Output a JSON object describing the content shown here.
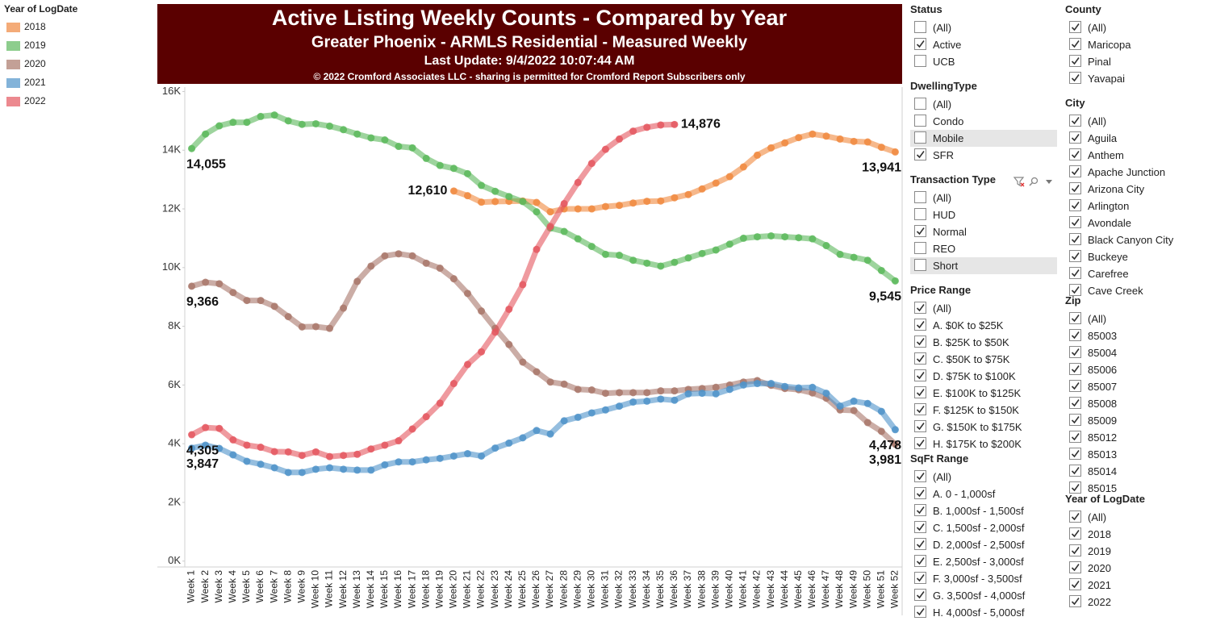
{
  "chart_data": {
    "type": "line",
    "title": "Active Listing Weekly Counts - Compared by Year",
    "subtitle": "Greater Phoenix - ARMLS Residential - Measured Weekly",
    "update": "Last Update: 9/4/2022 10:07:44 AM",
    "copyright": "© 2022 Cromford Associates LLC - sharing is permitted for Cromford Report Subscribers only",
    "legend_title": "Year of LogDate",
    "legend": "left",
    "grid": false,
    "categories": [
      "Week 1",
      "Week 2",
      "Week 3",
      "Week 4",
      "Week 5",
      "Week 6",
      "Week 7",
      "Week 8",
      "Week 9",
      "Week 10",
      "Week 11",
      "Week 12",
      "Week 13",
      "Week 14",
      "Week 15",
      "Week 16",
      "Week 17",
      "Week 18",
      "Week 19",
      "Week 20",
      "Week 21",
      "Week 22",
      "Week 23",
      "Week 24",
      "Week 25",
      "Week 26",
      "Week 27",
      "Week 28",
      "Week 29",
      "Week 30",
      "Week 31",
      "Week 32",
      "Week 33",
      "Week 34",
      "Week 35",
      "Week 36",
      "Week 37",
      "Week 38",
      "Week 39",
      "Week 40",
      "Week 41",
      "Week 42",
      "Week 43",
      "Week 44",
      "Week 45",
      "Week 46",
      "Week 47",
      "Week 48",
      "Week 49",
      "Week 50",
      "Week 51",
      "Week 52"
    ],
    "ylim": [
      -200,
      16150
    ],
    "yticks": [
      {
        "value": 0,
        "label": "0K"
      },
      {
        "value": 2000,
        "label": "2K"
      },
      {
        "value": 4000,
        "label": "4K"
      },
      {
        "value": 6000,
        "label": "6K"
      },
      {
        "value": 8000,
        "label": "8K"
      },
      {
        "value": 10000,
        "label": "10K"
      },
      {
        "value": 12000,
        "label": "12K"
      },
      {
        "value": 14000,
        "label": "14K"
      },
      {
        "value": 16000,
        "label": "16K"
      }
    ],
    "series": [
      {
        "name": "2018",
        "color": "#f0883e",
        "values": [
          null,
          null,
          null,
          null,
          null,
          null,
          null,
          null,
          null,
          null,
          null,
          null,
          null,
          null,
          null,
          null,
          null,
          null,
          null,
          12610,
          12450,
          12230,
          12250,
          12260,
          12270,
          12220,
          11900,
          12000,
          12000,
          12000,
          12080,
          12120,
          12200,
          12260,
          12270,
          12380,
          12490,
          12680,
          12880,
          13100,
          13430,
          13830,
          14080,
          14250,
          14430,
          14550,
          14480,
          14380,
          14300,
          14280,
          14100,
          13941
        ],
        "value_labels": [
          null,
          null,
          null,
          null,
          null,
          null,
          null,
          null,
          null,
          null,
          null,
          null,
          null,
          null,
          null,
          null,
          null,
          null,
          null,
          "12,610",
          null,
          null,
          null,
          null,
          null,
          null,
          null,
          null,
          null,
          null,
          null,
          null,
          null,
          null,
          null,
          null,
          null,
          null,
          null,
          null,
          null,
          null,
          null,
          null,
          null,
          null,
          null,
          null,
          null,
          null,
          null,
          "13,941"
        ]
      },
      {
        "name": "2019",
        "color": "#5cb85c",
        "values": [
          14055,
          14550,
          14830,
          14950,
          14950,
          15150,
          15200,
          15000,
          14880,
          14900,
          14820,
          14700,
          14550,
          14420,
          14350,
          14130,
          14080,
          13720,
          13480,
          13380,
          13200,
          12800,
          12600,
          12420,
          12250,
          11900,
          11350,
          11230,
          10980,
          10720,
          10450,
          10420,
          10250,
          10150,
          10050,
          10180,
          10330,
          10480,
          10600,
          10800,
          11000,
          11050,
          11080,
          11050,
          11020,
          10980,
          10750,
          10450,
          10350,
          10250,
          9900,
          9545
        ],
        "value_labels": [
          "14,055",
          null,
          null,
          null,
          null,
          null,
          null,
          null,
          null,
          null,
          null,
          null,
          null,
          null,
          null,
          null,
          null,
          null,
          null,
          null,
          null,
          null,
          null,
          null,
          null,
          null,
          null,
          null,
          null,
          null,
          null,
          null,
          null,
          null,
          null,
          null,
          null,
          null,
          null,
          null,
          null,
          null,
          null,
          null,
          null,
          null,
          null,
          null,
          null,
          null,
          null,
          "9,545"
        ]
      },
      {
        "name": "2020",
        "color": "#a9776a",
        "values": [
          9366,
          9500,
          9450,
          9150,
          8880,
          8880,
          8680,
          8330,
          7980,
          7990,
          7930,
          8620,
          9530,
          10050,
          10400,
          10470,
          10400,
          10150,
          9980,
          9620,
          9120,
          8520,
          7930,
          7380,
          6780,
          6450,
          6100,
          6030,
          5850,
          5830,
          5720,
          5740,
          5740,
          5740,
          5800,
          5800,
          5850,
          5880,
          5920,
          6000,
          6100,
          6150,
          5990,
          5880,
          5840,
          5730,
          5550,
          5150,
          5130,
          4720,
          4420,
          3981
        ],
        "value_labels": [
          "9,366",
          null,
          null,
          null,
          null,
          null,
          null,
          null,
          null,
          null,
          null,
          null,
          null,
          null,
          null,
          null,
          null,
          null,
          null,
          null,
          null,
          null,
          null,
          null,
          null,
          null,
          null,
          null,
          null,
          null,
          null,
          null,
          null,
          null,
          null,
          null,
          null,
          null,
          null,
          null,
          null,
          null,
          null,
          null,
          null,
          null,
          null,
          null,
          null,
          null,
          null,
          "3,981"
        ]
      },
      {
        "name": "2021",
        "color": "#4f93c9",
        "values": [
          3847,
          3950,
          3840,
          3620,
          3400,
          3300,
          3180,
          3020,
          3020,
          3130,
          3180,
          3130,
          3100,
          3100,
          3280,
          3380,
          3380,
          3450,
          3500,
          3580,
          3660,
          3580,
          3850,
          4020,
          4200,
          4450,
          4330,
          4780,
          4900,
          5050,
          5150,
          5280,
          5420,
          5450,
          5520,
          5480,
          5700,
          5720,
          5700,
          5850,
          6000,
          6050,
          6050,
          5950,
          5900,
          5920,
          5720,
          5280,
          5450,
          5370,
          5100,
          4478
        ],
        "value_labels": [
          "3,847",
          null,
          null,
          null,
          null,
          null,
          null,
          null,
          null,
          null,
          null,
          null,
          null,
          null,
          null,
          null,
          null,
          null,
          null,
          null,
          null,
          null,
          null,
          null,
          null,
          null,
          null,
          null,
          null,
          null,
          null,
          null,
          null,
          null,
          null,
          null,
          null,
          null,
          null,
          null,
          null,
          null,
          null,
          null,
          null,
          null,
          null,
          null,
          null,
          null,
          null,
          "4,478"
        ]
      },
      {
        "name": "2022",
        "color": "#e4575f",
        "values": [
          4305,
          4550,
          4520,
          4130,
          3950,
          3880,
          3730,
          3720,
          3600,
          3720,
          3560,
          3600,
          3640,
          3820,
          3950,
          4100,
          4500,
          4920,
          5380,
          6050,
          6700,
          7130,
          7800,
          8580,
          9420,
          10620,
          11400,
          12180,
          12900,
          13550,
          14030,
          14380,
          14650,
          14780,
          14860,
          14876,
          null,
          null,
          null,
          null,
          null,
          null,
          null,
          null,
          null,
          null,
          null,
          null,
          null,
          null,
          null,
          null
        ],
        "value_labels": [
          "4,305",
          null,
          null,
          null,
          null,
          null,
          null,
          null,
          null,
          null,
          null,
          null,
          null,
          null,
          null,
          null,
          null,
          null,
          null,
          null,
          null,
          null,
          null,
          null,
          null,
          null,
          null,
          null,
          null,
          null,
          null,
          null,
          null,
          null,
          null,
          "14,876",
          null,
          null,
          null,
          null,
          null,
          null,
          null,
          null,
          null,
          null,
          null,
          null,
          null,
          null,
          null,
          null
        ]
      }
    ]
  },
  "filters": [
    {
      "title": "Status",
      "items": [
        {
          "label": "(All)",
          "checked": false
        },
        {
          "label": "Active",
          "checked": true
        },
        {
          "label": "UCB",
          "checked": false
        }
      ]
    },
    {
      "title": "DwellingType",
      "items": [
        {
          "label": "(All)",
          "checked": false
        },
        {
          "label": "Condo",
          "checked": false
        },
        {
          "label": "Mobile",
          "checked": false,
          "highlighted": true
        },
        {
          "label": "SFR",
          "checked": true
        }
      ]
    },
    {
      "title": "Transaction Type",
      "items": [
        {
          "label": "(All)",
          "checked": false
        },
        {
          "label": "HUD",
          "checked": false
        },
        {
          "label": "Normal",
          "checked": true
        },
        {
          "label": "REO",
          "checked": false
        },
        {
          "label": "Short",
          "checked": false,
          "highlighted": true
        }
      ]
    },
    {
      "title": "Price Range",
      "items": [
        {
          "label": "(All)",
          "checked": true
        },
        {
          "label": "A. $0K to $25K",
          "checked": true
        },
        {
          "label": "B. $25K to $50K",
          "checked": true
        },
        {
          "label": "C. $50K to $75K",
          "checked": true
        },
        {
          "label": "D. $75K to $100K",
          "checked": true
        },
        {
          "label": "E. $100K to $125K",
          "checked": true
        },
        {
          "label": "F. $125K to $150K",
          "checked": true
        },
        {
          "label": "G. $150K to $175K",
          "checked": true
        },
        {
          "label": "H. $175K to $200K",
          "checked": true
        }
      ]
    },
    {
      "title": "SqFt Range",
      "items": [
        {
          "label": "(All)",
          "checked": true
        },
        {
          "label": "A. 0 - 1,000sf",
          "checked": true
        },
        {
          "label": "B. 1,000sf - 1,500sf",
          "checked": true
        },
        {
          "label": "C. 1,500sf - 2,000sf",
          "checked": true
        },
        {
          "label": "D. 2,000sf - 2,500sf",
          "checked": true
        },
        {
          "label": "E. 2,500sf - 3,000sf",
          "checked": true
        },
        {
          "label": "F. 3,000sf - 3,500sf",
          "checked": true
        },
        {
          "label": "G. 3,500sf - 4,000sf",
          "checked": true
        },
        {
          "label": "H. 4,000sf - 5,000sf",
          "checked": true
        }
      ]
    },
    {
      "title": "County",
      "items": [
        {
          "label": "(All)",
          "checked": true
        },
        {
          "label": "Maricopa",
          "checked": true
        },
        {
          "label": "Pinal",
          "checked": true
        },
        {
          "label": "Yavapai",
          "checked": true
        }
      ]
    },
    {
      "title": "City",
      "items": [
        {
          "label": "(All)",
          "checked": true
        },
        {
          "label": "Aguila",
          "checked": true
        },
        {
          "label": "Anthem",
          "checked": true
        },
        {
          "label": "Apache Junction",
          "checked": true
        },
        {
          "label": "Arizona City",
          "checked": true
        },
        {
          "label": "Arlington",
          "checked": true
        },
        {
          "label": "Avondale",
          "checked": true
        },
        {
          "label": "Black Canyon City",
          "checked": true
        },
        {
          "label": "Buckeye",
          "checked": true
        },
        {
          "label": "Carefree",
          "checked": true
        },
        {
          "label": "Cave Creek",
          "checked": true
        }
      ]
    },
    {
      "title": "Zip",
      "items": [
        {
          "label": "(All)",
          "checked": true
        },
        {
          "label": "85003",
          "checked": true
        },
        {
          "label": "85004",
          "checked": true
        },
        {
          "label": "85006",
          "checked": true
        },
        {
          "label": "85007",
          "checked": true
        },
        {
          "label": "85008",
          "checked": true
        },
        {
          "label": "85009",
          "checked": true
        },
        {
          "label": "85012",
          "checked": true
        },
        {
          "label": "85013",
          "checked": true
        },
        {
          "label": "85014",
          "checked": true
        },
        {
          "label": "85015",
          "checked": true
        }
      ]
    },
    {
      "title": "Year of LogDate",
      "items": [
        {
          "label": "(All)",
          "checked": true
        },
        {
          "label": "2018",
          "checked": true
        },
        {
          "label": "2019",
          "checked": true
        },
        {
          "label": "2020",
          "checked": true
        },
        {
          "label": "2021",
          "checked": true
        },
        {
          "label": "2022",
          "checked": true
        }
      ]
    }
  ]
}
